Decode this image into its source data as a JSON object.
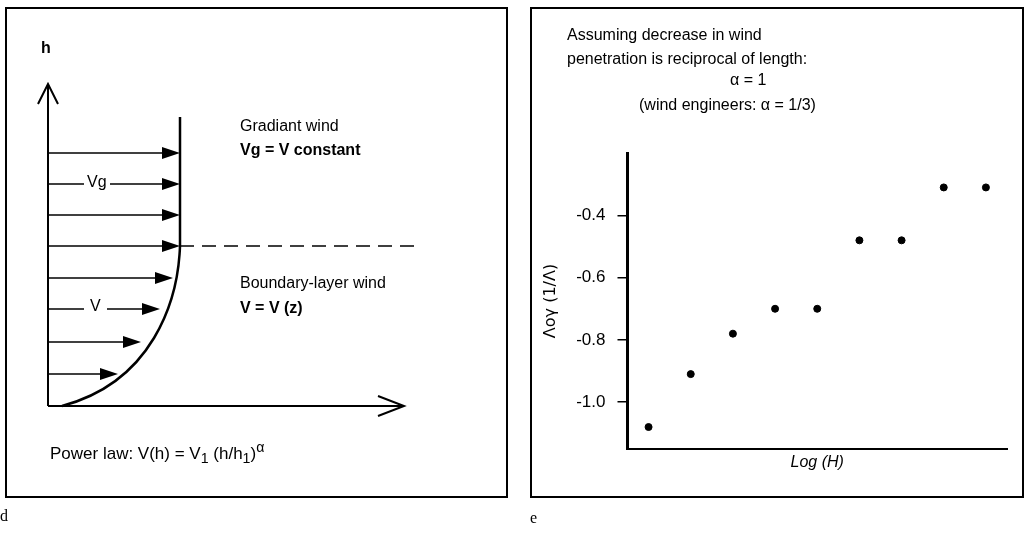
{
  "chart_data": [
    {
      "type": "other",
      "annotations": [
        "h",
        "Gradiant wind",
        "Vg = V constant",
        "Vg",
        "V",
        "Boundary-layer wind",
        "V = V (z)",
        "Power law:  V(h) =    V$_{1}$ (h/h$_{1}$)$^{α}$",
        "d"
      ]
    },
    {
      "type": "scatter",
      "title": "Assuming decrease in wind penetration is reciprocal of length:",
      "annotations": [
        "α = 1",
        "(wind engineers:     α = 1/3)",
        "e"
      ],
      "xlabel": "Log (H)",
      "ylabel": "Λογ (1/Λ)",
      "categories": [
        null,
        null,
        null,
        null,
        null,
        null,
        null,
        null,
        null
      ],
      "values": [
        -1.08,
        -0.91,
        -0.78,
        -0.7,
        -0.7,
        -0.48,
        -0.48,
        -0.31,
        -0.31
      ],
      "color": "#000000",
      "marker": "circle",
      "ylim": [
        -1.15,
        -0.2
      ],
      "yticks": [
        -0.4,
        -0.6,
        -0.8,
        {
          "value": -1,
          "label": "-1.0"
        }
      ],
      "tick_labels": "y"
    }
  ]
}
